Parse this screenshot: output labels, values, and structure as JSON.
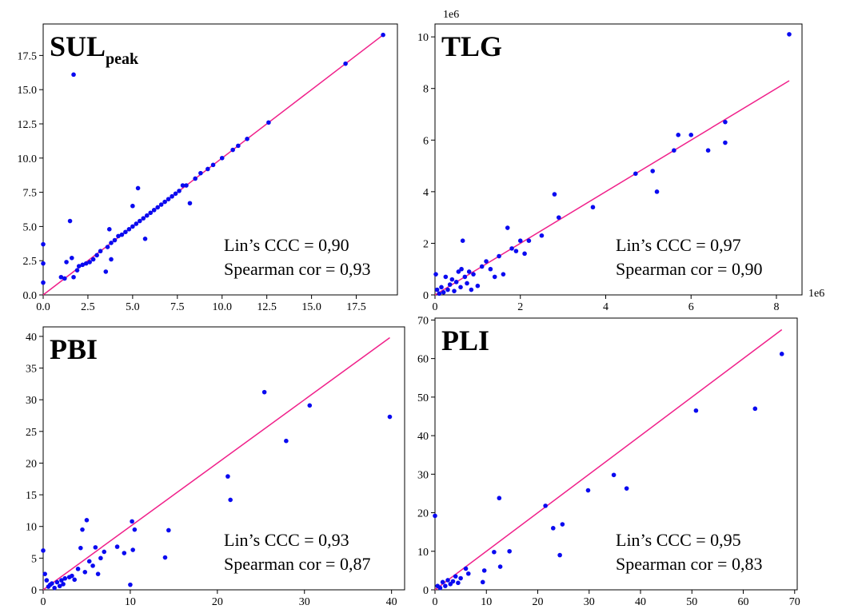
{
  "colors": {
    "points": "#0a0af0",
    "identity_line": "#f0208a",
    "frame": "#000000"
  },
  "chart_data": [
    {
      "type": "scatter",
      "title_main": "SUL",
      "title_sub": "peak",
      "xlim": [
        0,
        19.8
      ],
      "ylim": [
        0,
        19.8
      ],
      "xticks": [
        "0.0",
        "2.5",
        "5.0",
        "7.5",
        "10.0",
        "12.5",
        "15.0",
        "17.5"
      ],
      "yticks": [
        "0.0",
        "2.5",
        "5.0",
        "7.5",
        "10.0",
        "12.5",
        "15.0",
        "17.5"
      ],
      "tick_values": [
        0,
        2.5,
        5,
        7.5,
        10,
        12.5,
        15,
        17.5
      ],
      "exponent_label_x": "",
      "exponent_label_y": "",
      "identity_line": [
        0,
        19.0
      ],
      "stats": {
        "lin_ccc": "Lin’s CCC = 0,90",
        "spearman": "Spearman cor = 0,93"
      },
      "points": [
        [
          0,
          3.7
        ],
        [
          0,
          2.3
        ],
        [
          0,
          0.9
        ],
        [
          1.0,
          1.3
        ],
        [
          1.2,
          1.2
        ],
        [
          1.3,
          2.4
        ],
        [
          1.5,
          5.4
        ],
        [
          1.6,
          2.7
        ],
        [
          1.7,
          16.1
        ],
        [
          1.7,
          1.3
        ],
        [
          1.9,
          1.8
        ],
        [
          2.0,
          2.1
        ],
        [
          2.2,
          2.2
        ],
        [
          2.4,
          2.3
        ],
        [
          2.6,
          2.4
        ],
        [
          2.8,
          2.6
        ],
        [
          3.0,
          2.9
        ],
        [
          3.2,
          3.2
        ],
        [
          3.5,
          1.7
        ],
        [
          3.6,
          3.5
        ],
        [
          3.7,
          4.8
        ],
        [
          3.8,
          2.6
        ],
        [
          3.8,
          3.8
        ],
        [
          4.0,
          4.0
        ],
        [
          4.2,
          4.3
        ],
        [
          4.4,
          4.4
        ],
        [
          4.6,
          4.6
        ],
        [
          4.8,
          4.8
        ],
        [
          5.0,
          5.0
        ],
        [
          5.0,
          6.5
        ],
        [
          5.2,
          5.2
        ],
        [
          5.3,
          7.8
        ],
        [
          5.4,
          5.4
        ],
        [
          5.6,
          5.6
        ],
        [
          5.7,
          4.1
        ],
        [
          5.8,
          5.8
        ],
        [
          6.0,
          6.0
        ],
        [
          6.2,
          6.2
        ],
        [
          6.4,
          6.4
        ],
        [
          6.6,
          6.6
        ],
        [
          6.8,
          6.8
        ],
        [
          7.0,
          7.0
        ],
        [
          7.2,
          7.2
        ],
        [
          7.4,
          7.4
        ],
        [
          7.6,
          7.6
        ],
        [
          7.8,
          8.0
        ],
        [
          8.0,
          8.0
        ],
        [
          8.2,
          6.7
        ],
        [
          8.5,
          8.5
        ],
        [
          8.8,
          8.9
        ],
        [
          9.2,
          9.2
        ],
        [
          9.5,
          9.5
        ],
        [
          10.0,
          10.0
        ],
        [
          10.6,
          10.6
        ],
        [
          10.9,
          10.9
        ],
        [
          11.4,
          11.4
        ],
        [
          12.6,
          12.6
        ],
        [
          16.9,
          16.9
        ],
        [
          19.0,
          19.0
        ]
      ]
    },
    {
      "type": "scatter",
      "title_main": "TLG",
      "title_sub": "",
      "xlim": [
        0,
        8.6
      ],
      "ylim": [
        0,
        10.5
      ],
      "xticks": [
        "0",
        "2",
        "4",
        "6",
        "8"
      ],
      "yticks": [
        "0",
        "2",
        "4",
        "6",
        "8",
        "10"
      ],
      "xtick_values": [
        0,
        2,
        4,
        6,
        8
      ],
      "ytick_values": [
        0,
        2,
        4,
        6,
        8,
        10
      ],
      "exponent_label_x": "1e6",
      "exponent_label_y": "1e6",
      "identity_line": [
        0,
        8.3
      ],
      "stats": {
        "lin_ccc": "Lin’s CCC = 0,97",
        "spearman": "Spearman cor = 0,90"
      },
      "points": [
        [
          0.02,
          0.8
        ],
        [
          0.05,
          0.2
        ],
        [
          0.1,
          0.05
        ],
        [
          0.15,
          0.3
        ],
        [
          0.2,
          0.1
        ],
        [
          0.25,
          0.7
        ],
        [
          0.3,
          0.2
        ],
        [
          0.35,
          0.4
        ],
        [
          0.4,
          0.6
        ],
        [
          0.45,
          0.15
        ],
        [
          0.5,
          0.5
        ],
        [
          0.55,
          0.9
        ],
        [
          0.6,
          0.3
        ],
        [
          0.62,
          1.0
        ],
        [
          0.65,
          2.1
        ],
        [
          0.7,
          0.7
        ],
        [
          0.75,
          0.45
        ],
        [
          0.8,
          0.9
        ],
        [
          0.85,
          0.2
        ],
        [
          0.9,
          0.8
        ],
        [
          1.0,
          0.35
        ],
        [
          1.1,
          1.1
        ],
        [
          1.2,
          1.3
        ],
        [
          1.3,
          1.0
        ],
        [
          1.4,
          0.7
        ],
        [
          1.5,
          1.5
        ],
        [
          1.6,
          0.8
        ],
        [
          1.7,
          2.6
        ],
        [
          1.8,
          1.8
        ],
        [
          1.9,
          1.7
        ],
        [
          2.0,
          2.1
        ],
        [
          2.1,
          1.6
        ],
        [
          2.2,
          2.1
        ],
        [
          2.5,
          2.3
        ],
        [
          2.8,
          3.9
        ],
        [
          2.9,
          3.0
        ],
        [
          3.7,
          3.4
        ],
        [
          4.7,
          4.7
        ],
        [
          5.1,
          4.8
        ],
        [
          5.2,
          4.0
        ],
        [
          5.6,
          5.6
        ],
        [
          5.7,
          6.2
        ],
        [
          6.0,
          6.2
        ],
        [
          6.4,
          5.6
        ],
        [
          6.8,
          6.7
        ],
        [
          6.8,
          5.9
        ],
        [
          8.3,
          10.1
        ]
      ]
    },
    {
      "type": "scatter",
      "title_main": "PBI",
      "title_sub": "",
      "xlim": [
        0,
        41.5
      ],
      "ylim": [
        0,
        41.5
      ],
      "xticks": [
        "0",
        "10",
        "20",
        "30",
        "40"
      ],
      "yticks": [
        "0",
        "5",
        "10",
        "15",
        "20",
        "25",
        "30",
        "35",
        "40"
      ],
      "xtick_values": [
        0,
        10,
        20,
        30,
        40
      ],
      "ytick_values": [
        0,
        5,
        10,
        15,
        20,
        25,
        30,
        35,
        40
      ],
      "exponent_label_x": "",
      "exponent_label_y": "",
      "identity_line": [
        0,
        39.8
      ],
      "stats": {
        "lin_ccc": "Lin’s CCC = 0,93",
        "spearman": "Spearman cor = 0,87"
      },
      "points": [
        [
          0,
          6.2
        ],
        [
          0.2,
          2.5
        ],
        [
          0.4,
          1.5
        ],
        [
          0.6,
          0.5
        ],
        [
          0.8,
          0.8
        ],
        [
          1.0,
          1.0
        ],
        [
          1.3,
          0.3
        ],
        [
          1.6,
          1.2
        ],
        [
          1.9,
          0.6
        ],
        [
          2.1,
          1.5
        ],
        [
          2.3,
          0.9
        ],
        [
          2.5,
          1.8
        ],
        [
          3.0,
          2.0
        ],
        [
          3.3,
          2.2
        ],
        [
          3.6,
          1.6
        ],
        [
          4.0,
          3.3
        ],
        [
          4.3,
          6.6
        ],
        [
          4.5,
          9.5
        ],
        [
          4.8,
          2.8
        ],
        [
          5.0,
          11.0
        ],
        [
          5.3,
          4.5
        ],
        [
          5.7,
          3.8
        ],
        [
          6.0,
          6.7
        ],
        [
          6.3,
          2.5
        ],
        [
          6.6,
          5.0
        ],
        [
          7.0,
          6.0
        ],
        [
          8.5,
          6.8
        ],
        [
          9.3,
          5.8
        ],
        [
          10.0,
          0.8
        ],
        [
          10.2,
          10.8
        ],
        [
          10.3,
          6.3
        ],
        [
          10.5,
          9.5
        ],
        [
          14.0,
          5.1
        ],
        [
          14.4,
          9.4
        ],
        [
          21.2,
          17.9
        ],
        [
          21.5,
          14.2
        ],
        [
          25.4,
          31.2
        ],
        [
          27.9,
          23.5
        ],
        [
          30.6,
          29.1
        ],
        [
          39.8,
          27.3
        ]
      ]
    },
    {
      "type": "scatter",
      "title_main": "PLI",
      "title_sub": "",
      "xlim": [
        0,
        70.5
      ],
      "ylim": [
        0,
        70.5
      ],
      "xticks": [
        "0",
        "10",
        "20",
        "30",
        "40",
        "50",
        "60",
        "70"
      ],
      "yticks": [
        "0",
        "10",
        "20",
        "30",
        "40",
        "50",
        "60",
        "70"
      ],
      "xtick_values": [
        0,
        10,
        20,
        30,
        40,
        50,
        60,
        70
      ],
      "ytick_values": [
        0,
        10,
        20,
        30,
        40,
        50,
        60,
        70
      ],
      "exponent_label_x": "",
      "exponent_label_y": "",
      "identity_line": [
        0,
        67.5
      ],
      "stats": {
        "lin_ccc": "Lin’s CCC = 0,95",
        "spearman": "Spearman cor = 0,83"
      },
      "points": [
        [
          0,
          19.2
        ],
        [
          0.5,
          1.0
        ],
        [
          1.0,
          0.5
        ],
        [
          1.5,
          2.0
        ],
        [
          2.0,
          1.0
        ],
        [
          2.5,
          2.5
        ],
        [
          3.0,
          1.5
        ],
        [
          3.5,
          2.2
        ],
        [
          4.0,
          3.5
        ],
        [
          4.5,
          1.8
        ],
        [
          5.0,
          3.0
        ],
        [
          6.0,
          5.5
        ],
        [
          6.5,
          4.2
        ],
        [
          9.3,
          2.0
        ],
        [
          9.6,
          5.0
        ],
        [
          11.5,
          9.8
        ],
        [
          12.5,
          23.8
        ],
        [
          12.7,
          6.0
        ],
        [
          14.5,
          10.0
        ],
        [
          21.5,
          21.8
        ],
        [
          23.0,
          16.0
        ],
        [
          24.3,
          9.0
        ],
        [
          24.8,
          17.0
        ],
        [
          29.8,
          25.8
        ],
        [
          34.8,
          29.8
        ],
        [
          37.3,
          26.3
        ],
        [
          50.8,
          46.5
        ],
        [
          62.3,
          47.0
        ],
        [
          67.5,
          61.2
        ]
      ]
    }
  ]
}
